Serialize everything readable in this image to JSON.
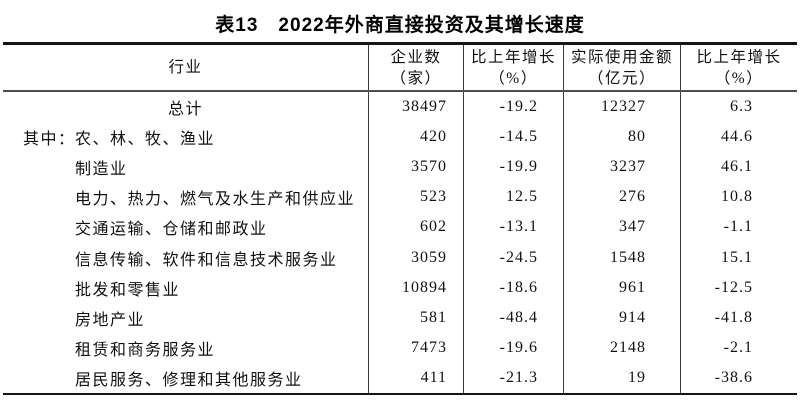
{
  "title": "表13　2022年外商直接投资及其增长速度",
  "table": {
    "headers": {
      "industry": "行业",
      "enterprises_line1": "企业数",
      "enterprises_line2": "（家）",
      "growth1_line1": "比上年增长",
      "growth1_line2": "（%）",
      "amount_line1": "实际使用金额",
      "amount_line2": "（亿元）",
      "growth2_line1": "比上年增长",
      "growth2_line2": "（%）"
    },
    "rows": [
      {
        "industry": "总计",
        "enterprises": "38497",
        "growth1": "-19.2",
        "amount": "12327",
        "growth2": "6.3"
      },
      {
        "prefix": "其中：",
        "industry": "农、林、牧、渔业",
        "enterprises": "420",
        "growth1": "-14.5",
        "amount": "80",
        "growth2": "44.6"
      },
      {
        "industry": "制造业",
        "enterprises": "3570",
        "growth1": "-19.9",
        "amount": "3237",
        "growth2": "46.1"
      },
      {
        "industry": "电力、热力、燃气及水生产和供应业",
        "enterprises": "523",
        "growth1": "12.5",
        "amount": "276",
        "growth2": "10.8"
      },
      {
        "industry": "交通运输、仓储和邮政业",
        "enterprises": "602",
        "growth1": "-13.1",
        "amount": "347",
        "growth2": "-1.1"
      },
      {
        "industry": "信息传输、软件和信息技术服务业",
        "enterprises": "3059",
        "growth1": "-24.5",
        "amount": "1548",
        "growth2": "15.1"
      },
      {
        "industry": "批发和零售业",
        "enterprises": "10894",
        "growth1": "-18.6",
        "amount": "961",
        "growth2": "-12.5"
      },
      {
        "industry": "房地产业",
        "enterprises": "581",
        "growth1": "-48.4",
        "amount": "914",
        "growth2": "-41.8"
      },
      {
        "industry": "租赁和商务服务业",
        "enterprises": "7473",
        "growth1": "-19.6",
        "amount": "2148",
        "growth2": "-2.1"
      },
      {
        "industry": "居民服务、修理和其他服务业",
        "enterprises": "411",
        "growth1": "-21.3",
        "amount": "19",
        "growth2": "-38.6"
      }
    ]
  }
}
